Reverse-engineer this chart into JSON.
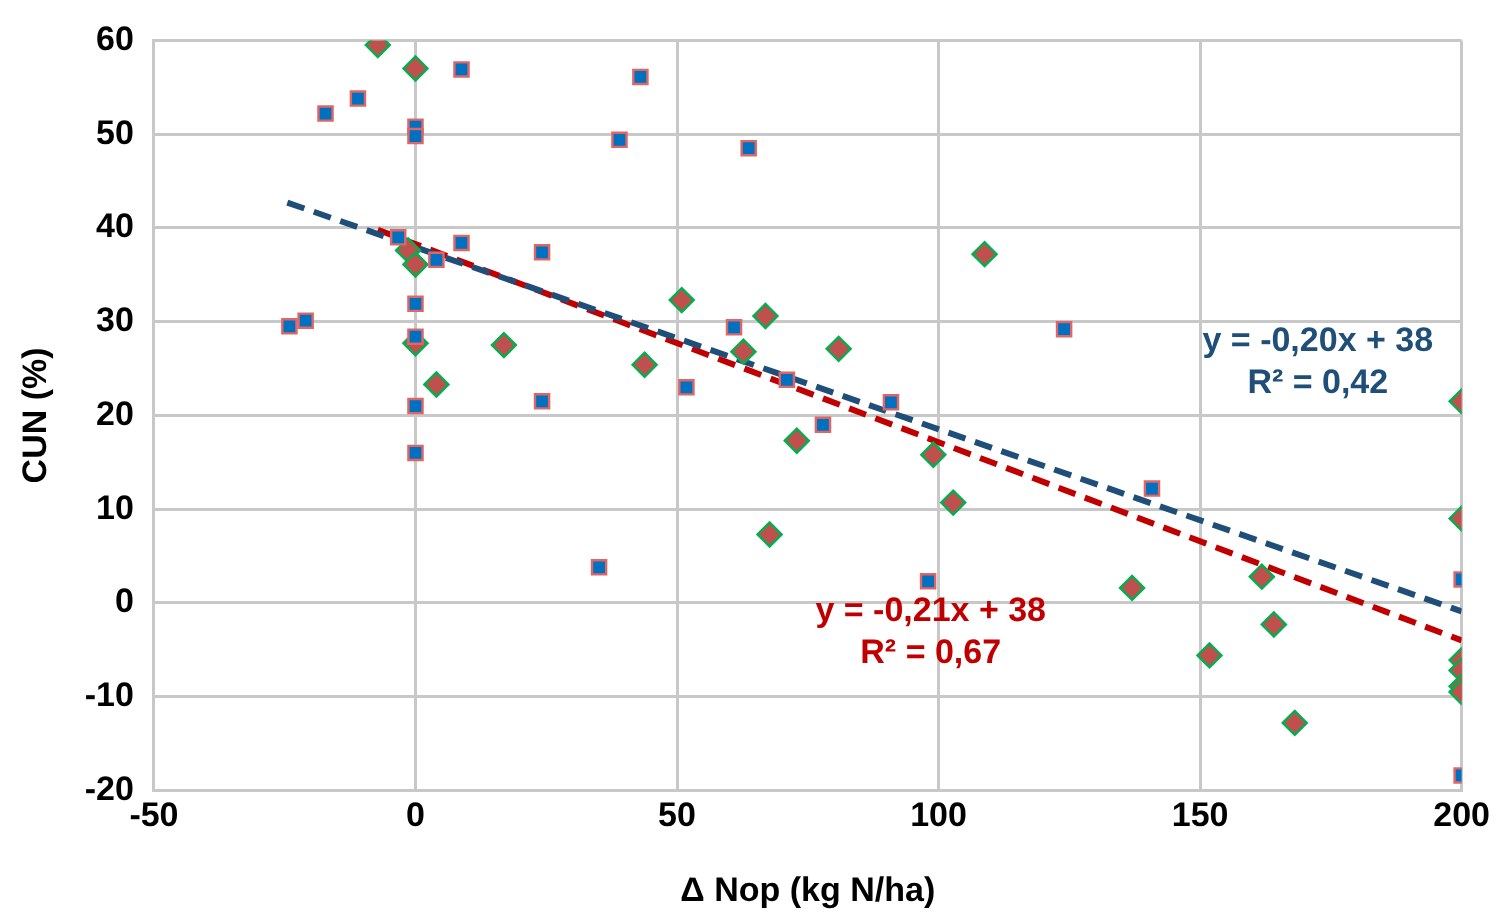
{
  "chart_data": {
    "type": "scatter",
    "xlabel": "Δ Nop (kg N/ha)",
    "ylabel": "CUN (%)",
    "xlim": [
      -50,
      200
    ],
    "xticks": [
      -50,
      0,
      50,
      100,
      150,
      200
    ],
    "ylim": [
      -20,
      60
    ],
    "yticks": [
      -20,
      -10,
      0,
      10,
      20,
      30,
      40,
      50,
      60
    ],
    "grid": true,
    "legend": false,
    "series": [
      {
        "marker": "square",
        "color": "#0070c0",
        "x": [
          8.8,
          43,
          -17.2,
          -11,
          0,
          0,
          39,
          63.7,
          -3.3,
          4,
          8.8,
          24.2,
          60.9,
          -24.1,
          -21,
          0,
          0,
          51.8,
          0,
          24.2,
          0,
          35.1,
          124,
          71,
          90.9,
          77.9,
          98,
          140.8,
          200,
          200
        ],
        "values": [
          56.9,
          56.1,
          52.2,
          53.8,
          50.8,
          49.8,
          49.4,
          48.5,
          39,
          36.6,
          38.4,
          37.4,
          29.4,
          29.5,
          30.1,
          31.9,
          28.4,
          23,
          21,
          21.5,
          16,
          3.8,
          29.2,
          23.8,
          21.4,
          19,
          2.3,
          12.2,
          2.5,
          -18.4
        ]
      },
      {
        "marker": "diamond",
        "color": "#c0504d",
        "x": [
          -7.2,
          0,
          -1.4,
          0,
          50.9,
          62.7,
          0,
          16.9,
          4,
          43.8,
          108.8,
          66.9,
          80.9,
          72.9,
          99,
          102.8,
          67.7,
          200,
          200,
          137,
          161.8,
          164.1,
          151.8,
          168.1,
          200,
          200,
          200,
          200
        ],
        "values": [
          59.5,
          57,
          37.6,
          36.1,
          32.3,
          26.8,
          27.7,
          27.5,
          23.3,
          25.4,
          37.2,
          30.6,
          27.1,
          17.3,
          15.8,
          10.7,
          7.3,
          21.5,
          9,
          1.6,
          2.8,
          -2.3,
          -5.6,
          -12.8,
          -6.1,
          -7.2,
          -8.9,
          -9.5
        ]
      },
      {
        "type": "line",
        "line_style": "dashed",
        "marker": "none",
        "color": "#1f4e79",
        "x": [
          -24.5,
          200
        ],
        "values": [
          42.7,
          -0.9
        ]
      },
      {
        "type": "line",
        "line_style": "dashed",
        "marker": "none",
        "color": "#c00000",
        "x": [
          -7.2,
          200
        ],
        "values": [
          39.8,
          -4
        ]
      }
    ],
    "annotations": [
      "y = -0,20x + 38\nR² = 0,42",
      "y = -0,21x + 38\nR² = 0,67"
    ]
  }
}
